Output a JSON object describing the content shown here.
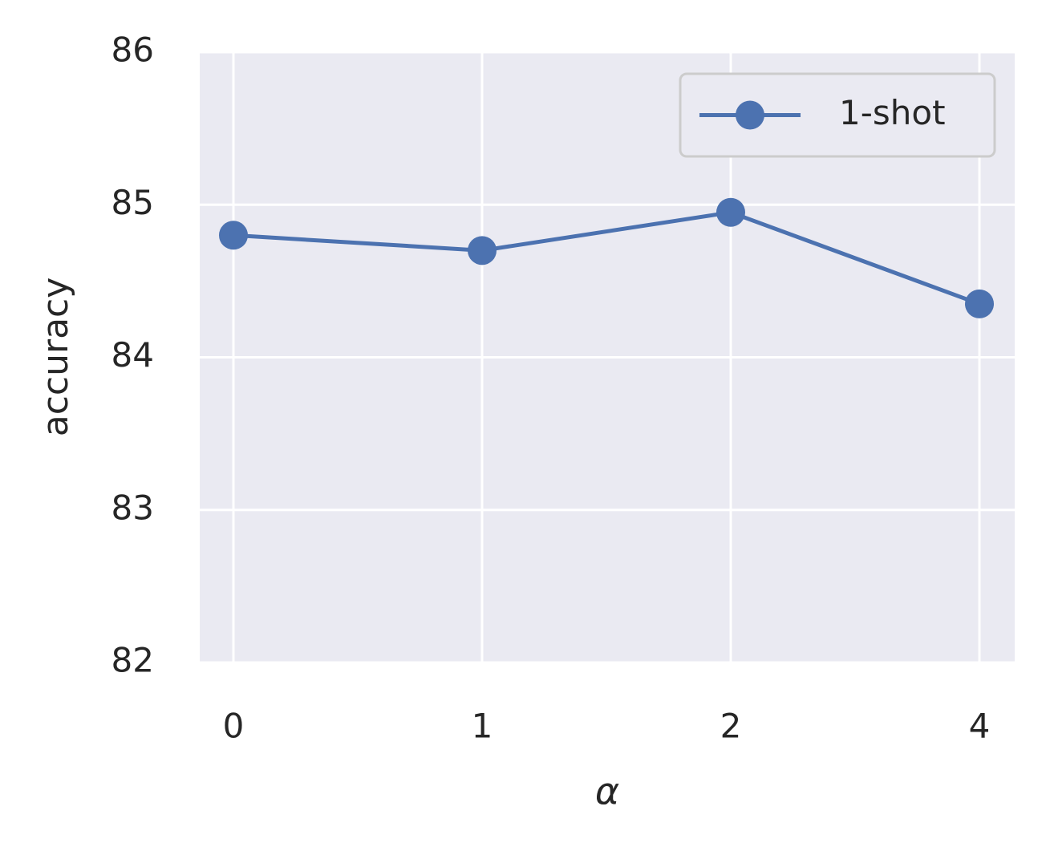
{
  "chart_data": {
    "type": "line",
    "x_label": "α",
    "y_label": "accuracy",
    "categories": [
      "0",
      "1",
      "2",
      "4"
    ],
    "series": [
      {
        "name": "1-shot",
        "color": "#4c72b0",
        "values": [
          84.8,
          84.7,
          84.95,
          84.35
        ]
      }
    ],
    "ylim": [
      82,
      86
    ],
    "yticks": [
      82,
      83,
      84,
      85,
      86
    ],
    "grid": true,
    "legend": "upper right"
  }
}
